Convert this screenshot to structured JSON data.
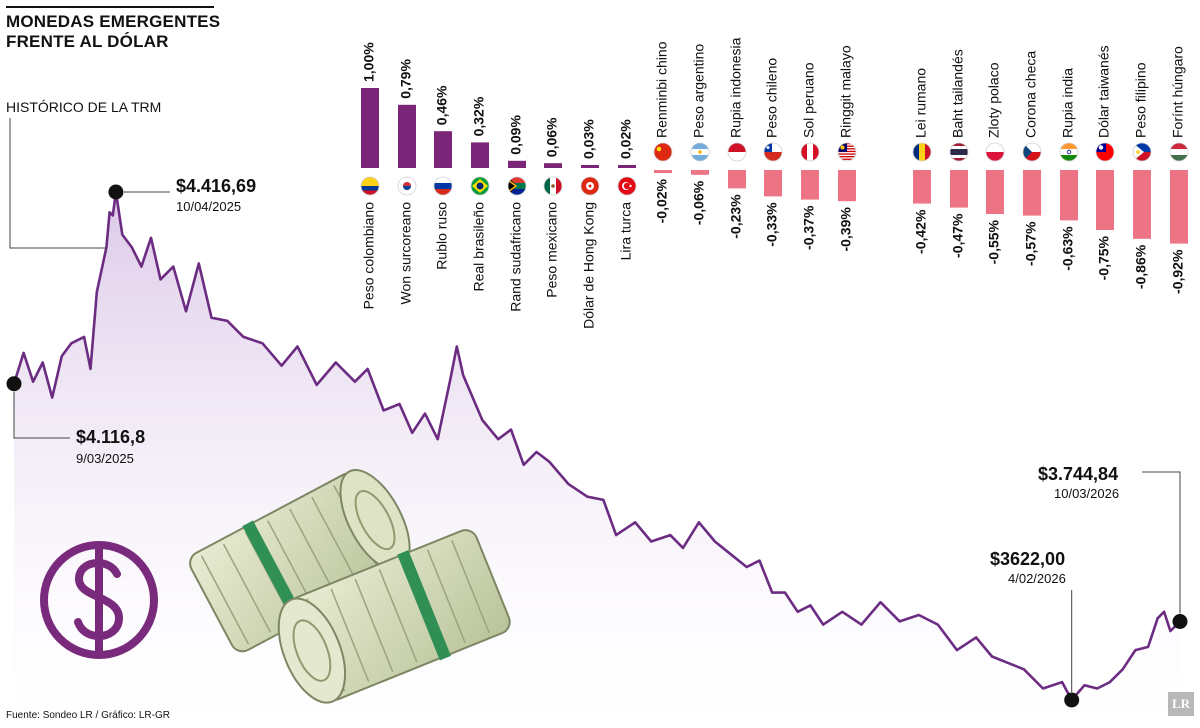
{
  "header": {
    "title_line1": "MONEDAS EMERGENTES",
    "title_line2": "FRENTE AL DÓLAR",
    "history_label": "HISTÓRICO DE LA TRM"
  },
  "annotations": {
    "max": {
      "value": "$4.416,69",
      "date": "10/04/2025"
    },
    "start": {
      "value": "$4.116,8",
      "date": "9/03/2025"
    },
    "min": {
      "value": "$3622,00",
      "date": "4/02/2026"
    },
    "end": {
      "value": "$3.744,84",
      "date": "10/03/2026"
    }
  },
  "footer": {
    "source": "Fuente: Sondeo LR / Gráfico: LR-GR",
    "logo": "LR"
  },
  "colors": {
    "positive_bar": "#7b2579",
    "negative_bar": "#ed7485",
    "trm_line": "#6b2c82",
    "trm_fill_top": "#d9c4e6",
    "dollar_icon": "#7a2a7c"
  },
  "icons": [
    "dollar-sign-icon",
    "money-rolls-image"
  ],
  "chart_data": [
    {
      "type": "bar",
      "categories": [
        "Peso colombiano",
        "Won surcoreano",
        "Rublo ruso",
        "Real brasileño",
        "Rand sudafricano",
        "Peso mexicano",
        "Dólar de Hong Kong",
        "Lira turca",
        "Renminbi chino",
        "Peso argentino",
        "Rupia indonesia",
        "Peso chileno",
        "Sol peruano",
        "Ringgit malayo",
        "Lei rumano",
        "Baht tailandés",
        "Zloty polaco",
        "Corona checa",
        "Rupia india",
        "Dólar taiwanés",
        "Peso filipino",
        "Forínt húngaro"
      ],
      "values": [
        1.0,
        0.79,
        0.46,
        0.32,
        0.09,
        0.06,
        0.03,
        0.02,
        -0.02,
        -0.06,
        -0.23,
        -0.33,
        -0.37,
        -0.39,
        -0.42,
        -0.47,
        -0.55,
        -0.57,
        -0.63,
        -0.75,
        -0.86,
        -0.92
      ],
      "labels": [
        "1,00%",
        "0,79%",
        "0,46%",
        "0,32%",
        "0,09%",
        "0,06%",
        "0,03%",
        "0,02%",
        "-0,02%",
        "-0,06%",
        "-0,23%",
        "-0,33%",
        "-0,37%",
        "-0,39%",
        "-0,42%",
        "-0,47%",
        "-0,55%",
        "-0,57%",
        "-0,63%",
        "-0,75%",
        "-0,86%",
        "-0,92%"
      ],
      "flags": [
        "colombia",
        "south-korea",
        "russia",
        "brazil",
        "south-africa",
        "mexico",
        "hong-kong",
        "turkey",
        "china",
        "argentina",
        "indonesia",
        "chile",
        "peru",
        "malaysia",
        "romania",
        "thailand",
        "poland",
        "czech-republic",
        "india",
        "taiwan",
        "philippines",
        "hungary"
      ]
    },
    {
      "type": "area",
      "title": "HISTÓRICO DE LA TRM",
      "points": [
        [
          "2025-03-09",
          4116.8
        ],
        [
          "2025-03-12",
          4165
        ],
        [
          "2025-03-15",
          4120
        ],
        [
          "2025-03-18",
          4150
        ],
        [
          "2025-03-21",
          4095
        ],
        [
          "2025-03-24",
          4160
        ],
        [
          "2025-03-27",
          4180
        ],
        [
          "2025-03-31",
          4190
        ],
        [
          "2025-04-02",
          4140
        ],
        [
          "2025-04-04",
          4260
        ],
        [
          "2025-04-07",
          4330
        ],
        [
          "2025-04-08",
          4385
        ],
        [
          "2025-04-09",
          4380
        ],
        [
          "2025-04-10",
          4416.69
        ],
        [
          "2025-04-12",
          4350
        ],
        [
          "2025-04-15",
          4330
        ],
        [
          "2025-04-18",
          4300
        ],
        [
          "2025-04-21",
          4345
        ],
        [
          "2025-04-24",
          4280
        ],
        [
          "2025-04-28",
          4300
        ],
        [
          "2025-05-02",
          4230
        ],
        [
          "2025-05-06",
          4305
        ],
        [
          "2025-05-10",
          4220
        ],
        [
          "2025-05-15",
          4215
        ],
        [
          "2025-05-20",
          4190
        ],
        [
          "2025-05-26",
          4180
        ],
        [
          "2025-06-01",
          4145
        ],
        [
          "2025-06-06",
          4175
        ],
        [
          "2025-06-12",
          4115
        ],
        [
          "2025-06-18",
          4150
        ],
        [
          "2025-06-24",
          4120
        ],
        [
          "2025-06-28",
          4140
        ],
        [
          "2025-07-03",
          4075
        ],
        [
          "2025-07-08",
          4085
        ],
        [
          "2025-07-12",
          4040
        ],
        [
          "2025-07-16",
          4070
        ],
        [
          "2025-07-20",
          4030
        ],
        [
          "2025-07-24",
          4125
        ],
        [
          "2025-07-26",
          4175
        ],
        [
          "2025-07-28",
          4130
        ],
        [
          "2025-08-03",
          4060
        ],
        [
          "2025-08-08",
          4030
        ],
        [
          "2025-08-12",
          4045
        ],
        [
          "2025-08-16",
          3990
        ],
        [
          "2025-08-20",
          4010
        ],
        [
          "2025-08-24",
          3995
        ],
        [
          "2025-08-30",
          3960
        ],
        [
          "2025-09-05",
          3940
        ],
        [
          "2025-09-10",
          3935
        ],
        [
          "2025-09-14",
          3880
        ],
        [
          "2025-09-20",
          3900
        ],
        [
          "2025-09-25",
          3870
        ],
        [
          "2025-10-01",
          3880
        ],
        [
          "2025-10-05",
          3860
        ],
        [
          "2025-10-10",
          3900
        ],
        [
          "2025-10-15",
          3870
        ],
        [
          "2025-10-20",
          3850
        ],
        [
          "2025-10-25",
          3830
        ],
        [
          "2025-10-29",
          3840
        ],
        [
          "2025-11-02",
          3790
        ],
        [
          "2025-11-06",
          3790
        ],
        [
          "2025-11-10",
          3760
        ],
        [
          "2025-11-14",
          3770
        ],
        [
          "2025-11-18",
          3740
        ],
        [
          "2025-11-24",
          3760
        ],
        [
          "2025-11-30",
          3740
        ],
        [
          "2025-12-06",
          3775
        ],
        [
          "2025-12-12",
          3745
        ],
        [
          "2025-12-18",
          3755
        ],
        [
          "2025-12-24",
          3740
        ],
        [
          "2025-12-30",
          3700
        ],
        [
          "2026-01-05",
          3720
        ],
        [
          "2026-01-10",
          3690
        ],
        [
          "2026-01-15",
          3680
        ],
        [
          "2026-01-20",
          3670
        ],
        [
          "2026-01-26",
          3640
        ],
        [
          "2026-02-01",
          3650
        ],
        [
          "2026-02-04",
          3622.0
        ],
        [
          "2026-02-08",
          3645
        ],
        [
          "2026-02-12",
          3640
        ],
        [
          "2026-02-16",
          3650
        ],
        [
          "2026-02-20",
          3670
        ],
        [
          "2026-02-24",
          3700
        ],
        [
          "2026-02-28",
          3705
        ],
        [
          "2026-03-03",
          3750
        ],
        [
          "2026-03-05",
          3760
        ],
        [
          "2026-03-07",
          3730
        ],
        [
          "2026-03-10",
          3744.84
        ]
      ],
      "ylim": [
        3600,
        4450
      ],
      "grid": false
    }
  ]
}
